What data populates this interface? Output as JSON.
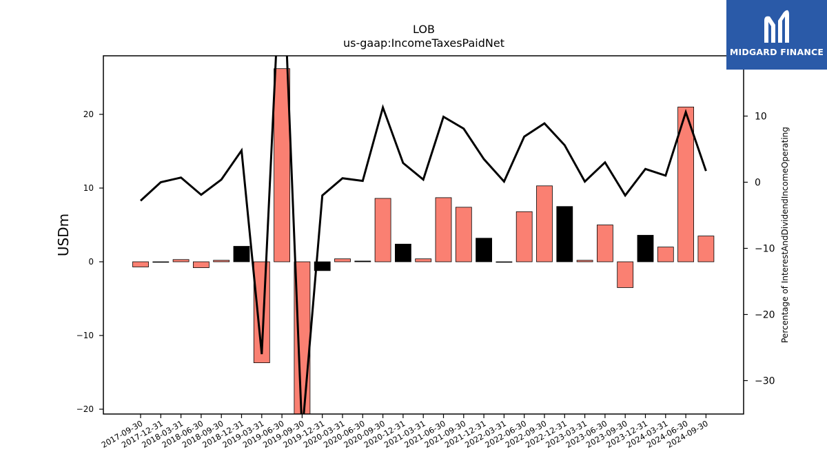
{
  "chart_data": {
    "type": "bar+line",
    "title": "LOB",
    "subtitle": "us-gaap:IncomeTaxesPaidNet",
    "ylabel": "USDm",
    "ylabel_right": "Percentage of InterestAndDividendIncomeOperating",
    "ylim": [
      -20.5,
      28
    ],
    "ylim_right": [
      -35,
      19
    ],
    "yticks": [
      -20,
      -10,
      0,
      10,
      20
    ],
    "yticks_right": [
      -30,
      -20,
      -10,
      0,
      10
    ],
    "categories": [
      "2017-09-30",
      "2017-12-31",
      "2018-03-31",
      "2018-06-30",
      "2018-09-30",
      "2018-12-31",
      "2019-03-31",
      "2019-06-30",
      "2019-09-30",
      "2019-12-31",
      "2020-03-31",
      "2020-06-30",
      "2020-09-30",
      "2020-12-31",
      "2021-03-31",
      "2021-06-30",
      "2021-09-30",
      "2021-12-31",
      "2022-03-31",
      "2022-06-30",
      "2022-09-30",
      "2022-12-31",
      "2023-03-31",
      "2023-06-30",
      "2023-09-30",
      "2023-12-31",
      "2024-03-31",
      "2024-06-30",
      "2024-09-30"
    ],
    "bar_series": {
      "name": "us-gaap:IncomeTaxesPaidNet",
      "values": [
        -0.7,
        0.0,
        0.3,
        -0.8,
        0.2,
        2.1,
        -13.7,
        26.2,
        -21.0,
        -1.2,
        0.4,
        0.1,
        8.6,
        2.4,
        0.4,
        8.7,
        7.4,
        3.2,
        0.0,
        6.8,
        10.3,
        7.5,
        0.2,
        5.0,
        -3.5,
        3.6,
        2.0,
        21.0,
        3.5
      ],
      "colors": [
        "#fa8072",
        "#fa8072",
        "#fa8072",
        "#fa8072",
        "#fa8072",
        "#000000",
        "#fa8072",
        "#fa8072",
        "#fa8072",
        "#000000",
        "#fa8072",
        "#000000",
        "#fa8072",
        "#000000",
        "#fa8072",
        "#fa8072",
        "#fa8072",
        "#000000",
        "#000000",
        "#fa8072",
        "#fa8072",
        "#000000",
        "#fa8072",
        "#fa8072",
        "#fa8072",
        "#000000",
        "#fa8072",
        "#fa8072",
        "#fa8072"
      ]
    },
    "line_series": {
      "name": "Percentage of InterestAndDividendIncomeOperating",
      "values": [
        -2.8,
        0.0,
        0.7,
        -1.9,
        0.4,
        4.8,
        -26.0,
        38.0,
        -38.0,
        -2.0,
        0.6,
        0.2,
        11.3,
        2.9,
        0.4,
        9.9,
        8.1,
        3.5,
        0.1,
        6.9,
        8.9,
        5.6,
        0.1,
        3.0,
        -2.0,
        2.0,
        1.0,
        10.6,
        1.7
      ],
      "color": "#000000"
    },
    "grid": false
  },
  "logo": {
    "text": "MIDGARD FINANCE",
    "background": "#2a5aa8"
  }
}
